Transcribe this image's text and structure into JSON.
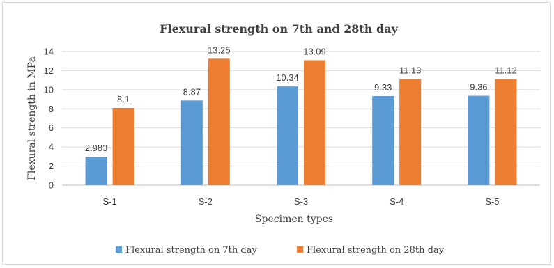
{
  "chart_data": {
    "type": "bar",
    "title": "Flexural strength on 7th and 28th day",
    "xlabel": "Specimen types",
    "ylabel": "Flexural strength in MPa",
    "categories": [
      "S-1",
      "S-2",
      "S-3",
      "S-4",
      "S-5"
    ],
    "series": [
      {
        "name": "Flexural strength on 7th  day",
        "color": "#5b9bd5",
        "values": [
          2.983,
          8.87,
          10.34,
          9.33,
          9.36
        ],
        "labels": [
          "2.983",
          "8.87",
          "10.34",
          "9.33",
          "9.36"
        ]
      },
      {
        "name": "Flexural strength on  28th day",
        "color": "#ed7d31",
        "values": [
          8.1,
          13.25,
          13.09,
          11.13,
          11.12
        ],
        "labels": [
          "8.1",
          "13.25",
          "13.09",
          "11.13",
          "11.12"
        ]
      }
    ],
    "ylim": [
      0,
      14
    ],
    "yticks": [
      0,
      2,
      4,
      6,
      8,
      10,
      12,
      14
    ],
    "grid": true,
    "legend": "bottom"
  }
}
